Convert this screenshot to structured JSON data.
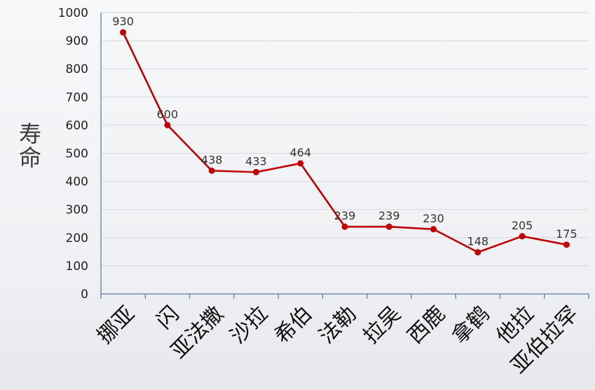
{
  "chart_data": {
    "type": "line",
    "ylabel": "寿命",
    "xlabel": "",
    "title": "",
    "ylim": [
      0,
      1000
    ],
    "yticks": [
      "0",
      "100",
      "200",
      "300",
      "400",
      "500",
      "600",
      "700",
      "800",
      "900",
      "1000"
    ],
    "grid": true,
    "categories": [
      "挪亚",
      "闪",
      "亚法撒",
      "沙拉",
      "希伯",
      "法勒",
      "拉吴",
      "西鹿",
      "拿鹤",
      "他拉",
      "亚伯拉罕"
    ],
    "series": [
      {
        "values": [
          930,
          600,
          438,
          433,
          464,
          239,
          239,
          230,
          148,
          205,
          175
        ]
      }
    ],
    "line_color": "#c00000",
    "data_labels": true
  }
}
